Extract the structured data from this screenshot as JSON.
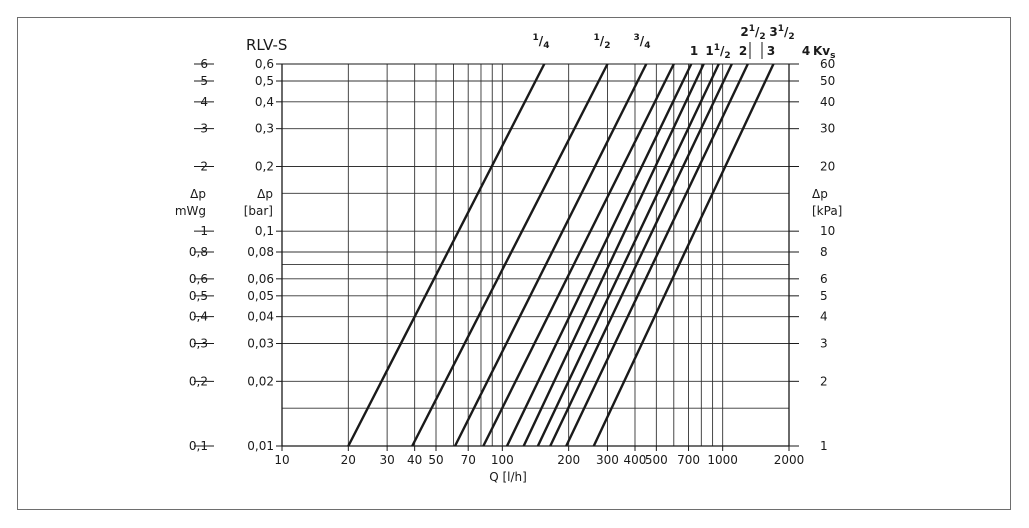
{
  "chart_data": {
    "type": "line",
    "title": "RLV-S",
    "xlabel": "Q [l/h]",
    "x_scale": "log",
    "y_scale": "log",
    "xlim": [
      10,
      2000
    ],
    "ylim_bar": [
      0.01,
      0.6
    ],
    "x_ticks": [
      "10",
      "20",
      "30",
      "40",
      "50",
      "70",
      "100",
      "200",
      "300",
      "400",
      "500",
      "700",
      "1000",
      "2000"
    ],
    "y_left": {
      "label_lines": [
        "Δp",
        "mWg"
      ],
      "ticks": [
        "6",
        "5",
        "4",
        "3",
        "2",
        "1",
        "0,8",
        "0,6",
        "0,5",
        "0,4",
        "0,3",
        "0,2",
        "0,1"
      ]
    },
    "y_mid": {
      "label_lines": [
        "Δp",
        "[bar]"
      ],
      "ticks": [
        "0,6",
        "0,5",
        "0,4",
        "0,3",
        "0,2",
        "0,1",
        "0,08",
        "0,06",
        "0,05",
        "0,04",
        "0,03",
        "0,02",
        "0,01"
      ]
    },
    "y_right": {
      "label_lines": [
        "Δp",
        "[kPa]"
      ],
      "ticks": [
        "60",
        "50",
        "40",
        "30",
        "20",
        "10",
        "8",
        "6",
        "5",
        "4",
        "3",
        "2",
        "1"
      ]
    },
    "kv_label": "Kv",
    "kv_label_sub": "s",
    "grid": true,
    "series": [
      {
        "name": "1/4",
        "kv": 0.2,
        "points": [
          [
            20,
            0.01
          ],
          [
            155,
            0.6
          ]
        ]
      },
      {
        "name": "1/2",
        "kv": 0.4,
        "points": [
          [
            39,
            0.01
          ],
          [
            300,
            0.6
          ]
        ]
      },
      {
        "name": "3/4",
        "kv": 0.6,
        "points": [
          [
            61,
            0.01
          ],
          [
            450,
            0.6
          ]
        ]
      },
      {
        "name": "1",
        "kv": 0.8,
        "points": [
          [
            82,
            0.01
          ],
          [
            600,
            0.6
          ]
        ]
      },
      {
        "name": "1 1/2",
        "kv": 1.0,
        "points": [
          [
            105,
            0.01
          ],
          [
            720,
            0.6
          ]
        ]
      },
      {
        "name": "2",
        "kv": 1.2,
        "points": [
          [
            125,
            0.01
          ],
          [
            820,
            0.6
          ]
        ]
      },
      {
        "name": "2 1/2",
        "kv": 1.4,
        "points": [
          [
            145,
            0.01
          ],
          [
            960,
            0.6
          ]
        ]
      },
      {
        "name": "3",
        "kv": 1.6,
        "points": [
          [
            165,
            0.01
          ],
          [
            1100,
            0.6
          ]
        ]
      },
      {
        "name": "3 1/2",
        "kv": 1.9,
        "points": [
          [
            195,
            0.01
          ],
          [
            1300,
            0.6
          ]
        ]
      },
      {
        "name": "4",
        "kv": 2.6,
        "points": [
          [
            260,
            0.01
          ],
          [
            1700,
            0.6
          ]
        ]
      }
    ],
    "curve_labels": [
      {
        "whole": "",
        "num": "1",
        "den": "4"
      },
      {
        "whole": "",
        "num": "1",
        "den": "2"
      },
      {
        "whole": "",
        "num": "3",
        "den": "4"
      },
      {
        "whole": "1",
        "num": "",
        "den": ""
      },
      {
        "whole": "1",
        "num": "1",
        "den": "2"
      },
      {
        "whole": "2",
        "num": "",
        "den": ""
      },
      {
        "whole": "2",
        "num": "1",
        "den": "2"
      },
      {
        "whole": "3",
        "num": "",
        "den": ""
      },
      {
        "whole": "3",
        "num": "1",
        "den": "2"
      },
      {
        "whole": "4",
        "num": "",
        "den": ""
      }
    ]
  },
  "colors": {
    "line": "#1a1a1a",
    "grid": "#333333",
    "frame": "#6e6e6e",
    "background": "#ffffff"
  }
}
